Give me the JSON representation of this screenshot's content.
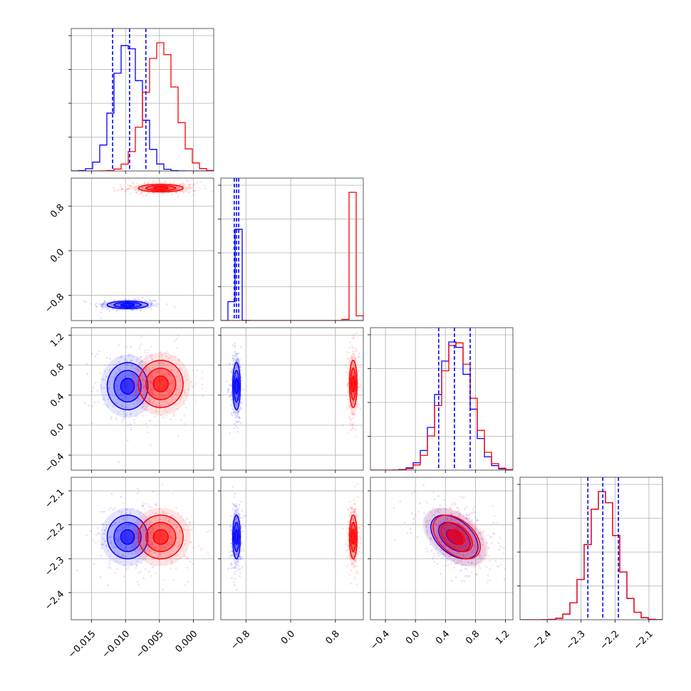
{
  "colors": {
    "series_a": "#0000ff",
    "series_b": "#ff0000",
    "grid": "#b0b0b0"
  },
  "chart_data": {
    "type": "corner",
    "grid": true,
    "legend": "none",
    "params": [
      {
        "range": [
          -0.018,
          0.003
        ],
        "ticks": [
          -0.015,
          -0.01,
          -0.005,
          0.0
        ],
        "tick_labels": [
          "−0.015",
          "−0.010",
          "−0.005",
          "0.000"
        ]
      },
      {
        "range": [
          -1.25,
          1.3
        ],
        "ticks": [
          -0.8,
          0.0,
          0.8
        ],
        "tick_labels": [
          "−0.8",
          "0.0",
          "0.8"
        ]
      },
      {
        "range": [
          -0.6,
          1.3
        ],
        "ticks": [
          -0.4,
          0.0,
          0.4,
          0.8,
          1.2
        ],
        "tick_labels": [
          "−0.4",
          "0.0",
          "0.4",
          "0.8",
          "1.2"
        ]
      },
      {
        "range": [
          -2.48,
          -2.06
        ],
        "ticks": [
          -2.4,
          -2.3,
          -2.2,
          -2.1
        ],
        "tick_labels": [
          "−2.4",
          "−2.3",
          "−2.2",
          "−2.1"
        ]
      }
    ],
    "series": [
      {
        "color": "series_a",
        "means": [
          -0.0097,
          -0.97,
          0.52,
          -2.236
        ],
        "sds": [
          0.002,
          0.045,
          0.21,
          0.043
        ],
        "quantiles": [
          [
            -0.0119,
            -0.0094,
            -0.007
          ],
          [
            -1.01,
            -0.97,
            -0.93
          ],
          [
            0.31,
            0.52,
            0.73
          ],
          [
            -2.28,
            -2.236,
            -2.19
          ]
        ]
      },
      {
        "color": "series_b",
        "means": [
          -0.0048,
          1.12,
          0.55,
          -2.236
        ],
        "sds": [
          0.0022,
          0.045,
          0.21,
          0.043
        ]
      }
    ],
    "correlations": [
      {
        "pair": [
          2,
          3
        ],
        "value": -0.45
      }
    ],
    "quantile_lines": {
      "series": "series_a",
      "style": "dashed",
      "quantiles": [
        0.16,
        0.5,
        0.84
      ]
    }
  }
}
